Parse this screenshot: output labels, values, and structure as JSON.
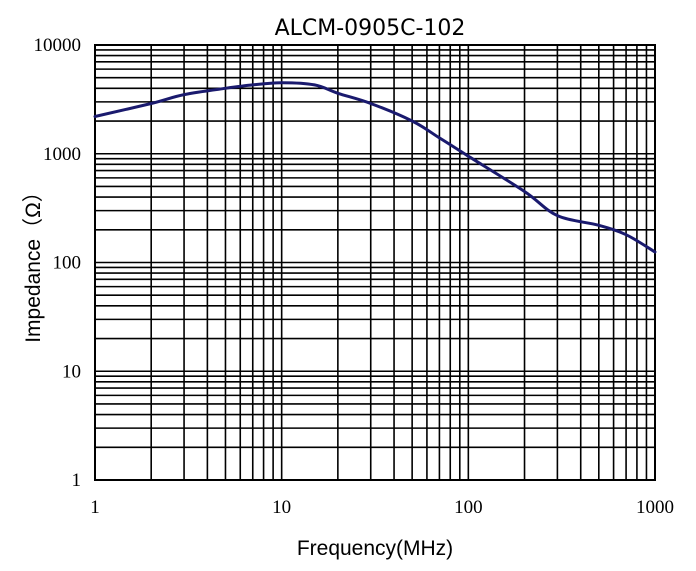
{
  "chart_data": {
    "type": "line",
    "title": "ALCM-0905C-102",
    "xlabel": "Frequency(MHz)",
    "ylabel": "Impedance（Ω）",
    "x_scale": "log",
    "y_scale": "log",
    "xlim": [
      1,
      1000
    ],
    "ylim": [
      1,
      10000
    ],
    "x_ticks": [
      "1",
      "10",
      "100",
      "1000"
    ],
    "y_ticks": [
      "1",
      "10",
      "100",
      "1000",
      "10000"
    ],
    "grid": true,
    "series": [
      {
        "color": "#1a1a6e",
        "points": [
          [
            1,
            2200
          ],
          [
            2,
            2900
          ],
          [
            3,
            3500
          ],
          [
            5,
            4000
          ],
          [
            7,
            4300
          ],
          [
            10,
            4500
          ],
          [
            15,
            4300
          ],
          [
            20,
            3600
          ],
          [
            30,
            2900
          ],
          [
            50,
            2000
          ],
          [
            70,
            1400
          ],
          [
            100,
            950
          ],
          [
            200,
            450
          ],
          [
            300,
            270
          ],
          [
            500,
            220
          ],
          [
            700,
            180
          ],
          [
            1000,
            125
          ]
        ]
      }
    ]
  }
}
